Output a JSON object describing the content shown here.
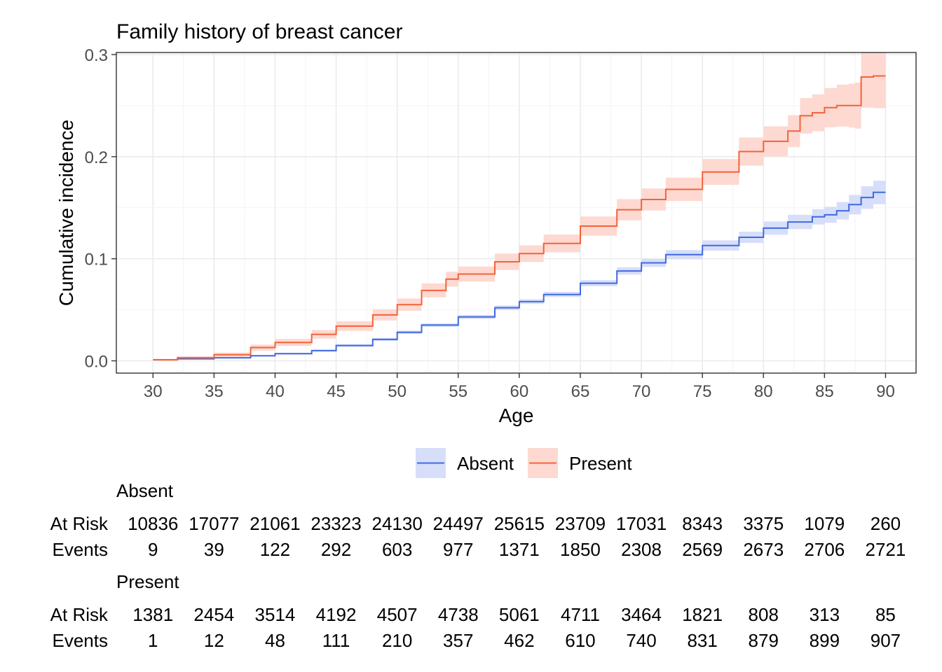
{
  "chart_data": {
    "type": "line",
    "title": "Family history of breast cancer",
    "xlabel": "Age",
    "ylabel": "Cumulative incidence",
    "xlim": [
      27,
      92.5
    ],
    "ylim": [
      -0.012,
      0.302
    ],
    "x_ticks": [
      30,
      35,
      40,
      45,
      50,
      55,
      60,
      65,
      70,
      75,
      80,
      85,
      90
    ],
    "y_ticks": [
      0.0,
      0.1,
      0.2,
      0.3
    ],
    "y_tick_labels": [
      "0.0",
      "0.1",
      "0.2",
      "0.3"
    ],
    "grid": true,
    "step": true,
    "confidence_band": true,
    "legend": {
      "position": "bottom"
    },
    "series": [
      {
        "name": "Absent",
        "color": "#4169E1",
        "band_color": "#D6DEF9",
        "x": [
          30,
          32,
          35,
          38,
          40,
          43,
          45,
          48,
          50,
          52,
          55,
          58,
          60,
          62,
          65,
          68,
          70,
          72,
          75,
          78,
          80,
          82,
          84,
          85,
          86,
          87,
          88,
          89,
          90
        ],
        "y": [
          0.001,
          0.002,
          0.003,
          0.005,
          0.007,
          0.01,
          0.015,
          0.021,
          0.028,
          0.035,
          0.043,
          0.052,
          0.058,
          0.065,
          0.076,
          0.088,
          0.096,
          0.104,
          0.113,
          0.121,
          0.13,
          0.136,
          0.141,
          0.143,
          0.147,
          0.153,
          0.16,
          0.165,
          0.165
        ],
        "lower": [
          0.0005,
          0.0015,
          0.0025,
          0.0043,
          0.0062,
          0.009,
          0.0137,
          0.0195,
          0.0264,
          0.0333,
          0.0411,
          0.0498,
          0.0557,
          0.0625,
          0.073,
          0.0845,
          0.0921,
          0.0995,
          0.108,
          0.1155,
          0.1235,
          0.129,
          0.1335,
          0.1352,
          0.1385,
          0.1435,
          0.149,
          0.1535,
          0.1535
        ],
        "upper": [
          0.0015,
          0.0025,
          0.0035,
          0.0057,
          0.0078,
          0.011,
          0.0163,
          0.0225,
          0.0296,
          0.0367,
          0.0449,
          0.0542,
          0.0603,
          0.0675,
          0.079,
          0.0915,
          0.0999,
          0.1085,
          0.118,
          0.1265,
          0.1365,
          0.143,
          0.1485,
          0.1508,
          0.1555,
          0.1625,
          0.171,
          0.1765,
          0.1765
        ]
      },
      {
        "name": "Present",
        "color": "#F4623A",
        "band_color": "#FDD9D1",
        "x": [
          30,
          32,
          35,
          38,
          40,
          43,
          45,
          48,
          50,
          52,
          54,
          55,
          58,
          60,
          62,
          65,
          68,
          70,
          72,
          75,
          78,
          80,
          82,
          83,
          84,
          85,
          86,
          87,
          87.5,
          88,
          89,
          90
        ],
        "y": [
          0.001,
          0.003,
          0.006,
          0.013,
          0.018,
          0.026,
          0.034,
          0.045,
          0.055,
          0.069,
          0.08,
          0.085,
          0.097,
          0.105,
          0.115,
          0.132,
          0.148,
          0.158,
          0.168,
          0.185,
          0.205,
          0.215,
          0.225,
          0.24,
          0.243,
          0.248,
          0.25,
          0.25,
          0.25,
          0.278,
          0.279,
          0.279
        ],
        "lower": [
          0.0,
          0.0015,
          0.004,
          0.01,
          0.0145,
          0.0218,
          0.0293,
          0.0395,
          0.049,
          0.0622,
          0.0727,
          0.0776,
          0.089,
          0.0969,
          0.1063,
          0.1226,
          0.1376,
          0.1472,
          0.1566,
          0.1724,
          0.1912,
          0.2003,
          0.2094,
          0.2226,
          0.2249,
          0.2288,
          0.2295,
          0.2285,
          0.2275,
          0.248,
          0.2475,
          0.2475
        ],
        "upper": [
          0.002,
          0.0045,
          0.008,
          0.016,
          0.0215,
          0.0302,
          0.0387,
          0.0505,
          0.061,
          0.0758,
          0.0873,
          0.0924,
          0.105,
          0.1131,
          0.1237,
          0.1414,
          0.1584,
          0.1688,
          0.1794,
          0.1976,
          0.2188,
          0.2297,
          0.2406,
          0.2574,
          0.2611,
          0.2672,
          0.2705,
          0.2715,
          0.2725,
          0.302,
          0.302,
          0.302
        ]
      }
    ]
  },
  "risk_table": {
    "x": [
      30,
      35,
      40,
      45,
      50,
      55,
      60,
      65,
      70,
      75,
      80,
      85,
      90
    ],
    "row_labels": {
      "at_risk": "At Risk",
      "events": "Events"
    },
    "groups": [
      {
        "title": "Absent",
        "at_risk": [
          "10836",
          "17077",
          "21061",
          "23323",
          "24130",
          "24497",
          "25615",
          "23709",
          "17031",
          "8343",
          "3375",
          "1079",
          "260"
        ],
        "events": [
          "9",
          "39",
          "122",
          "292",
          "603",
          "977",
          "1371",
          "1850",
          "2308",
          "2569",
          "2673",
          "2706",
          "2721"
        ]
      },
      {
        "title": "Present",
        "at_risk": [
          "1381",
          "2454",
          "3514",
          "4192",
          "4507",
          "4738",
          "5061",
          "4711",
          "3464",
          "1821",
          "808",
          "313",
          "85"
        ],
        "events": [
          "1",
          "12",
          "48",
          "111",
          "210",
          "357",
          "462",
          "610",
          "740",
          "831",
          "879",
          "899",
          "907"
        ]
      }
    ]
  }
}
